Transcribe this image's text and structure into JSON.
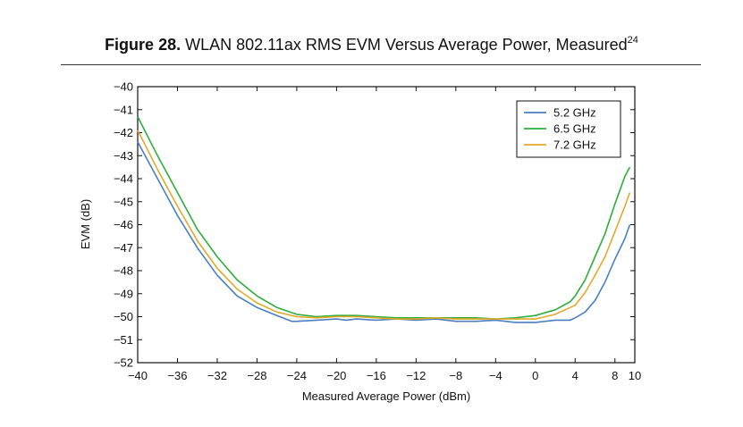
{
  "header": {
    "figure_label": "Figure 28.",
    "title_text": " WLAN 802.11ax RMS EVM Versus Average Power, Measured",
    "superscript": "24"
  },
  "chart_data": {
    "type": "line",
    "xlabel": "Measured Average Power (dBm)",
    "ylabel": "EVM (dB)",
    "xlim": [
      -40,
      10
    ],
    "ylim": [
      -52,
      -40
    ],
    "xticks": [
      -40,
      -36,
      -32,
      -28,
      -24,
      -20,
      -16,
      -12,
      -8,
      -4,
      0,
      4,
      8,
      10
    ],
    "yticks": [
      -40,
      -41,
      -42,
      -43,
      -44,
      -45,
      -46,
      -47,
      -48,
      -49,
      -50,
      -51,
      -52
    ],
    "grid": false,
    "legend_position": "top-right",
    "series": [
      {
        "name": "5.2 GHz",
        "color": "#4a7fc1",
        "x": [
          -40,
          -38,
          -36,
          -34,
          -32,
          -30,
          -28,
          -26,
          -24.5,
          -24,
          -22,
          -20,
          -19,
          -18,
          -16,
          -14,
          -12,
          -10,
          -8,
          -6,
          -4,
          -2,
          0,
          2,
          3.5,
          4,
          5,
          6,
          7,
          8,
          9,
          9.5
        ],
        "y": [
          -42.4,
          -44.0,
          -45.6,
          -47.0,
          -48.2,
          -49.1,
          -49.6,
          -49.95,
          -50.2,
          -50.2,
          -50.15,
          -50.1,
          -50.15,
          -50.1,
          -50.15,
          -50.1,
          -50.15,
          -50.1,
          -50.2,
          -50.2,
          -50.15,
          -50.25,
          -50.25,
          -50.15,
          -50.15,
          -50.05,
          -49.8,
          -49.3,
          -48.5,
          -47.5,
          -46.6,
          -46.0
        ]
      },
      {
        "name": "6.5 GHz",
        "color": "#2fad3a",
        "x": [
          -40,
          -38,
          -36,
          -34,
          -32,
          -30,
          -28,
          -26,
          -24,
          -22,
          -20,
          -18,
          -16,
          -14,
          -12,
          -10,
          -8,
          -6,
          -4,
          -2,
          0,
          2,
          3.5,
          4,
          5,
          6,
          7,
          8,
          9,
          9.5
        ],
        "y": [
          -41.3,
          -43.0,
          -44.6,
          -46.2,
          -47.4,
          -48.4,
          -49.1,
          -49.6,
          -49.9,
          -50.0,
          -49.95,
          -49.95,
          -50.0,
          -50.05,
          -50.05,
          -50.05,
          -50.05,
          -50.05,
          -50.1,
          -50.05,
          -49.95,
          -49.7,
          -49.35,
          -49.1,
          -48.4,
          -47.4,
          -46.4,
          -45.1,
          -43.9,
          -43.5
        ]
      },
      {
        "name": "7.2 GHz",
        "color": "#e3a92b",
        "x": [
          -40,
          -38,
          -36,
          -34,
          -32,
          -30,
          -28,
          -26,
          -24,
          -22,
          -20,
          -18,
          -16,
          -14,
          -12,
          -10,
          -8,
          -6,
          -4,
          -2,
          0,
          2,
          3.5,
          4,
          5,
          6,
          7,
          8,
          9,
          9.5
        ],
        "y": [
          -41.9,
          -43.6,
          -45.2,
          -46.7,
          -47.9,
          -48.8,
          -49.4,
          -49.8,
          -50.0,
          -50.05,
          -50.0,
          -50.0,
          -50.05,
          -50.1,
          -50.1,
          -50.05,
          -50.1,
          -50.1,
          -50.1,
          -50.1,
          -50.1,
          -49.9,
          -49.6,
          -49.5,
          -48.95,
          -48.2,
          -47.4,
          -46.3,
          -45.2,
          -44.6
        ]
      }
    ]
  }
}
